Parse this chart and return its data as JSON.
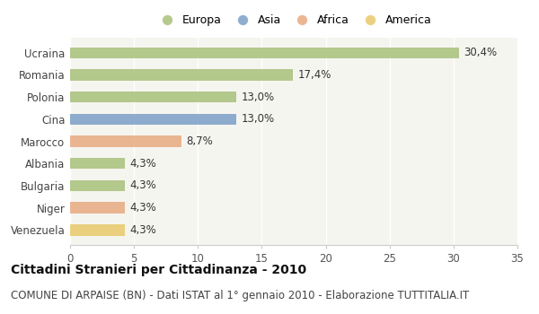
{
  "countries": [
    "Ucraina",
    "Romania",
    "Polonia",
    "Cina",
    "Marocco",
    "Albania",
    "Bulgaria",
    "Niger",
    "Venezuela"
  ],
  "values": [
    30.4,
    17.4,
    13.0,
    13.0,
    8.7,
    4.3,
    4.3,
    4.3,
    4.3
  ],
  "labels": [
    "30,4%",
    "17,4%",
    "13,0%",
    "13,0%",
    "8,7%",
    "4,3%",
    "4,3%",
    "4,3%",
    "4,3%"
  ],
  "continents": [
    "Europa",
    "Europa",
    "Europa",
    "Asia",
    "Africa",
    "Europa",
    "Europa",
    "Africa",
    "America"
  ],
  "colors": {
    "Europa": "#a8c07a",
    "Asia": "#7b9fc7",
    "Africa": "#e8aa80",
    "America": "#e8c96a"
  },
  "legend_order": [
    "Europa",
    "Asia",
    "Africa",
    "America"
  ],
  "xlim": [
    0,
    35
  ],
  "xticks": [
    0,
    5,
    10,
    15,
    20,
    25,
    30,
    35
  ],
  "bg_color": "#ffffff",
  "plot_bg_color": "#f5f5f0",
  "title": "Cittadini Stranieri per Cittadinanza - 2010",
  "subtitle": "COMUNE DI ARPAISE (BN) - Dati ISTAT al 1° gennaio 2010 - Elaborazione TUTTITALIA.IT",
  "bar_height": 0.5,
  "title_fontsize": 10,
  "subtitle_fontsize": 8.5,
  "label_fontsize": 8.5,
  "ytick_fontsize": 8.5,
  "xtick_fontsize": 8.5,
  "legend_fontsize": 9
}
